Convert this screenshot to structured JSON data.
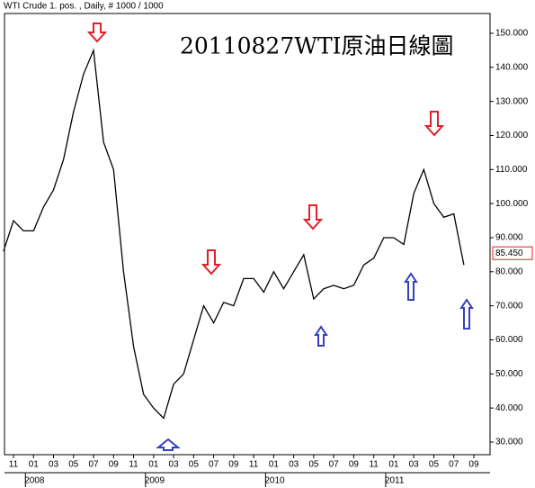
{
  "chart_data": {
    "type": "line",
    "header": "WTI Crude 1. pos. , Daily, # 1000 / 1000",
    "title": "20110827WTI原油日線圖",
    "x": [
      "2007-10",
      "2007-11",
      "2007-12",
      "2008-01",
      "2008-02",
      "2008-03",
      "2008-04",
      "2008-05",
      "2008-06",
      "2008-07",
      "2008-08",
      "2008-09",
      "2008-10",
      "2008-11",
      "2008-12",
      "2009-01",
      "2009-02",
      "2009-03",
      "2009-04",
      "2009-05",
      "2009-06",
      "2009-07",
      "2009-08",
      "2009-09",
      "2009-10",
      "2009-11",
      "2009-12",
      "2010-01",
      "2010-02",
      "2010-03",
      "2010-04",
      "2010-05",
      "2010-06",
      "2010-07",
      "2010-08",
      "2010-09",
      "2010-10",
      "2010-11",
      "2010-12",
      "2011-01",
      "2011-02",
      "2011-03",
      "2011-04",
      "2011-05",
      "2011-06",
      "2011-07",
      "2011-08"
    ],
    "series": [
      {
        "name": "WTI Crude",
        "color": "#000000",
        "values": [
          86,
          95,
          92,
          92,
          99,
          104,
          113,
          127,
          138,
          145,
          118,
          110,
          80,
          58,
          44,
          40,
          37,
          47,
          50,
          60,
          70,
          65,
          71,
          70,
          78,
          78,
          74,
          80,
          75,
          80,
          85,
          72,
          75,
          76,
          75,
          76,
          82,
          84,
          90,
          90,
          88,
          103,
          110,
          100,
          96,
          97,
          82
        ]
      }
    ],
    "last_price": {
      "value": 85.45,
      "label": "85.450"
    },
    "ylim": [
      26.3,
      155.8
    ],
    "yticks": [
      {
        "value": 30,
        "label": "30.000"
      },
      {
        "value": 40,
        "label": "40.000"
      },
      {
        "value": 50,
        "label": "50.000"
      },
      {
        "value": 60,
        "label": "60.000"
      },
      {
        "value": 70,
        "label": "70.000"
      },
      {
        "value": 80,
        "label": "80.000"
      },
      {
        "value": 90,
        "label": "90.000"
      },
      {
        "value": 100,
        "label": "100.000"
      },
      {
        "value": 110,
        "label": "110.000"
      },
      {
        "value": 120,
        "label": "120.000"
      },
      {
        "value": 130,
        "label": "130.000"
      },
      {
        "value": 140,
        "label": "140.000"
      },
      {
        "value": 150,
        "label": "150.000"
      }
    ],
    "xticks": [
      {
        "value": "2007-11",
        "label": "11"
      },
      {
        "value": "2008-01",
        "label": "01"
      },
      {
        "value": "2008-03",
        "label": "03"
      },
      {
        "value": "2008-05",
        "label": "05"
      },
      {
        "value": "2008-07",
        "label": "07"
      },
      {
        "value": "2008-09",
        "label": "09"
      },
      {
        "value": "2008-11",
        "label": "11"
      },
      {
        "value": "2009-01",
        "label": "01"
      },
      {
        "value": "2009-03",
        "label": "03"
      },
      {
        "value": "2009-05",
        "label": "05"
      },
      {
        "value": "2009-07",
        "label": "07"
      },
      {
        "value": "2009-09",
        "label": "09"
      },
      {
        "value": "2009-11",
        "label": "11"
      },
      {
        "value": "2010-01",
        "label": "01"
      },
      {
        "value": "2010-03",
        "label": "03"
      },
      {
        "value": "2010-05",
        "label": "05"
      },
      {
        "value": "2010-07",
        "label": "07"
      },
      {
        "value": "2010-09",
        "label": "09"
      },
      {
        "value": "2010-11",
        "label": "11"
      },
      {
        "value": "2011-01",
        "label": "01"
      },
      {
        "value": "2011-03",
        "label": "03"
      },
      {
        "value": "2011-05",
        "label": "05"
      },
      {
        "value": "2011-07",
        "label": "07"
      },
      {
        "value": "2011-09",
        "label": "09"
      }
    ],
    "year_labels": [
      {
        "value": "2008-01",
        "label": "2008"
      },
      {
        "value": "2009-01",
        "label": "2009"
      },
      {
        "value": "2010-01",
        "label": "2010"
      },
      {
        "value": "2011-01",
        "label": "2011"
      }
    ]
  }
}
